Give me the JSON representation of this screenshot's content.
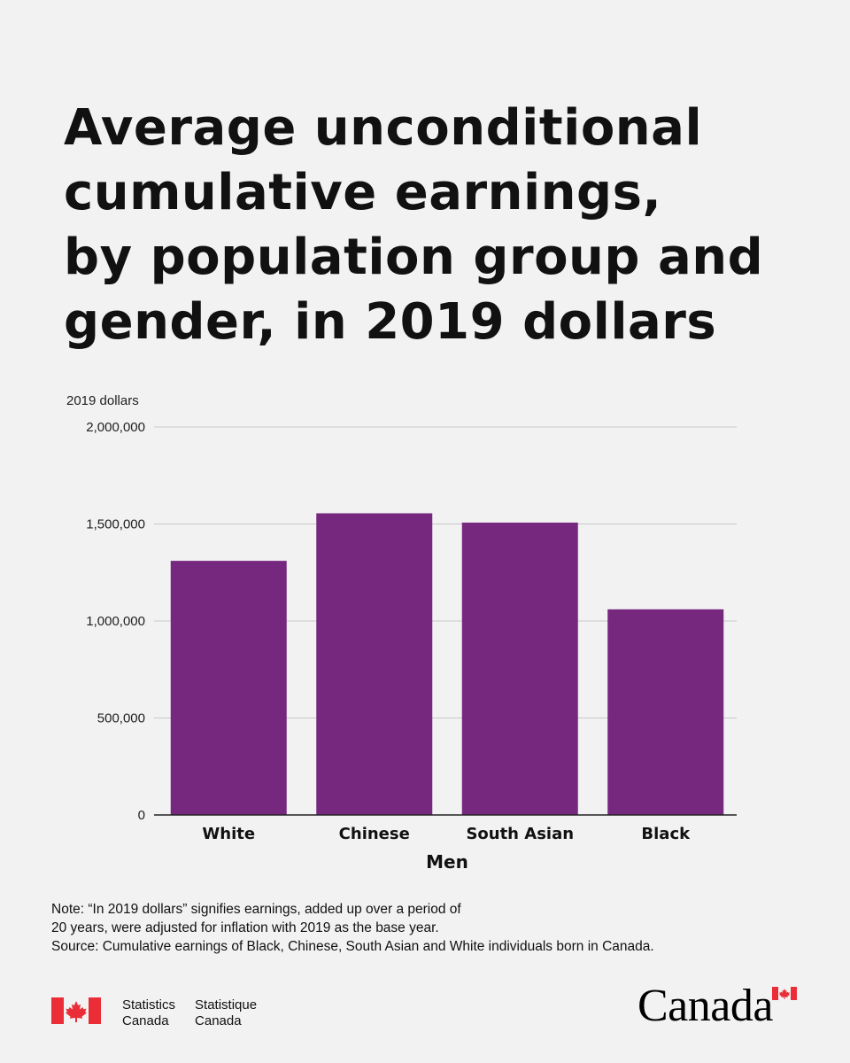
{
  "title_lines": [
    "Average unconditional",
    "cumulative earnings,",
    "by population group and",
    "gender, in 2019 dollars"
  ],
  "chart_data": {
    "type": "bar",
    "title": "Average unconditional cumulative earnings, by population group and gender, in 2019 dollars",
    "ylabel": "2019 dollars",
    "xlabel": "Men",
    "categories": [
      "White",
      "Chinese",
      "South Asian",
      "Black"
    ],
    "series": [
      {
        "values": [
          1310000,
          1555000,
          1507000,
          1060000
        ]
      }
    ],
    "ylim": [
      0,
      2000000
    ],
    "yticks": [
      0,
      500000,
      1000000,
      1500000,
      2000000
    ],
    "ytick_labels": [
      "0",
      "500,000",
      "1,000,000",
      "1,500,000",
      "2,000,000"
    ],
    "bar_color": "#76287f",
    "grid": true
  },
  "notes": {
    "line1": "Note: “In 2019 dollars” signifies earnings, added up over a period of",
    "line2": "20 years, were adjusted for inflation with 2019 as the base year.",
    "line3": "Source: Cumulative earnings of Black, Chinese, South Asian and White individuals born in Canada."
  },
  "footer": {
    "agency_en_line1": "Statistics",
    "agency_en_line2": "Canada",
    "agency_fr_line1": "Statistique",
    "agency_fr_line2": "Canada",
    "wordmark": "Canada",
    "flag_color": "#eb2d37"
  }
}
